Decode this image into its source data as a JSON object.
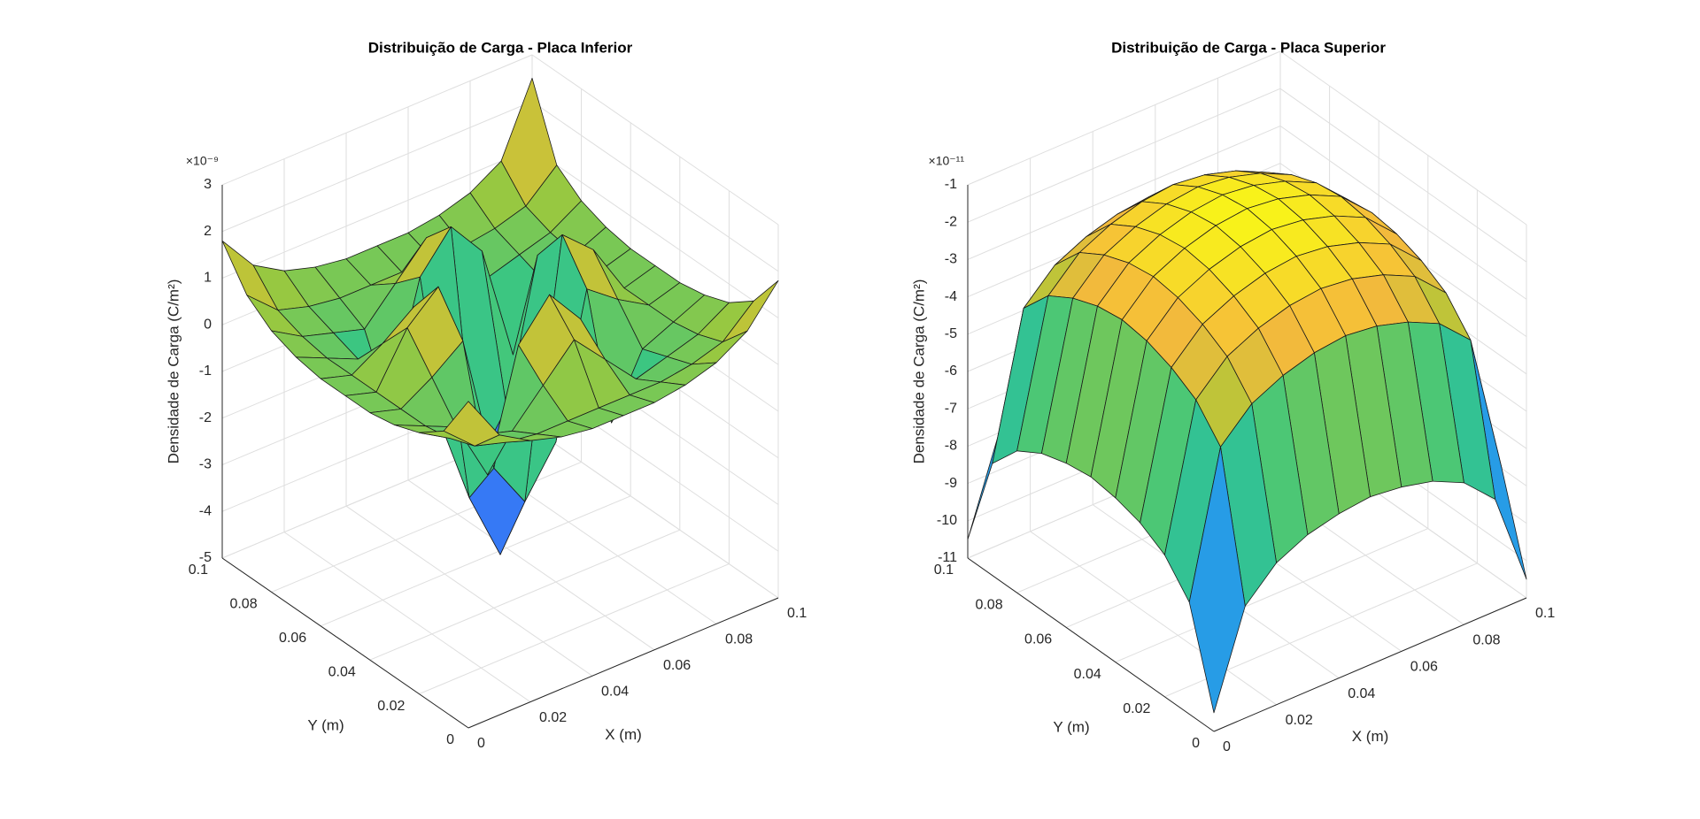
{
  "chart_data": [
    {
      "type": "surface",
      "title": "Distribuição de Carga - Placa Inferior",
      "xlabel": "X (m)",
      "ylabel": "Y (m)",
      "zlabel": "Densidade de Carga (C/m²)",
      "zscale": "×10⁻⁹",
      "x": [
        0,
        0.01,
        0.02,
        0.03,
        0.04,
        0.05,
        0.06,
        0.07,
        0.08,
        0.09,
        0.1
      ],
      "y": [
        0,
        0.01,
        0.02,
        0.03,
        0.04,
        0.05,
        0.06,
        0.07,
        0.08,
        0.09,
        0.1
      ],
      "z": [
        [
          2.0,
          1.0,
          0.6,
          0.4,
          0.3,
          0.3,
          0.3,
          0.4,
          0.6,
          1.0,
          1.8
        ],
        [
          1.0,
          0.4,
          0.2,
          0.1,
          0.1,
          0.1,
          0.1,
          0.1,
          0.2,
          0.4,
          1.0
        ],
        [
          0.6,
          0.2,
          0.0,
          -0.2,
          0.5,
          1.2,
          0.5,
          -0.2,
          0.0,
          0.2,
          0.6
        ],
        [
          0.4,
          0.1,
          -0.2,
          -1.5,
          1.0,
          1.8,
          1.0,
          -1.5,
          -0.2,
          0.1,
          0.4
        ],
        [
          0.3,
          0.1,
          0.5,
          1.0,
          -2.0,
          -3.0,
          -2.0,
          1.0,
          0.5,
          0.1,
          0.3
        ],
        [
          0.3,
          0.1,
          1.2,
          1.8,
          -3.0,
          -4.5,
          -3.0,
          1.8,
          1.2,
          0.1,
          0.3
        ],
        [
          0.3,
          0.1,
          0.5,
          1.0,
          -2.0,
          -3.0,
          -2.0,
          1.0,
          0.5,
          0.1,
          0.3
        ],
        [
          0.4,
          0.1,
          -0.2,
          -1.5,
          1.0,
          1.8,
          1.0,
          -1.5,
          -0.2,
          0.1,
          0.4
        ],
        [
          0.6,
          0.2,
          0.0,
          -0.2,
          0.5,
          1.2,
          0.5,
          -0.2,
          0.0,
          0.2,
          0.6
        ],
        [
          1.0,
          0.4,
          0.2,
          0.1,
          0.1,
          0.1,
          0.1,
          0.1,
          0.2,
          0.4,
          1.0
        ],
        [
          1.8,
          1.0,
          0.6,
          0.4,
          0.3,
          0.3,
          0.3,
          0.4,
          0.6,
          1.0,
          2.5
        ]
      ],
      "xlim": [
        0,
        0.1
      ],
      "ylim": [
        0,
        0.1
      ],
      "zlim": [
        -5,
        3
      ],
      "xticks": [
        0,
        0.02,
        0.04,
        0.06,
        0.08,
        0.1
      ],
      "yticks": [
        0,
        0.02,
        0.04,
        0.06,
        0.08,
        0.1
      ],
      "zticks": [
        -5,
        -4,
        -3,
        -2,
        -1,
        0,
        1,
        2,
        3
      ],
      "grid": true,
      "colormap": [
        "#3e26a8",
        "#4353f5",
        "#2f8ff5",
        "#17b7c6",
        "#3ec77e",
        "#a6c837",
        "#f5ba3c",
        "#f9fb15"
      ]
    },
    {
      "type": "surface",
      "title": "Distribuição de Carga - Placa Superior",
      "xlabel": "X (m)",
      "ylabel": "Y (m)",
      "zlabel": "Densidade de Carga (C/m²)",
      "zscale": "×10⁻¹¹",
      "x": [
        0,
        0.01,
        0.02,
        0.03,
        0.04,
        0.05,
        0.06,
        0.07,
        0.08,
        0.09,
        0.1
      ],
      "y": [
        0,
        0.01,
        0.02,
        0.03,
        0.04,
        0.05,
        0.06,
        0.07,
        0.08,
        0.09,
        0.1
      ],
      "z": [
        [
          -10.5,
          -8,
          -7.2,
          -6.8,
          -6.6,
          -6.5,
          -6.6,
          -6.8,
          -7.2,
          -8,
          -10.5
        ],
        [
          -8,
          -4.2,
          -3.4,
          -3.0,
          -2.75,
          -2.65,
          -2.75,
          -3.0,
          -3.4,
          -4.2,
          -8
        ],
        [
          -7.2,
          -3.4,
          -2.6,
          -2.2,
          -1.95,
          -1.85,
          -1.95,
          -2.2,
          -2.6,
          -3.4,
          -7.2
        ],
        [
          -6.8,
          -3.0,
          -2.2,
          -1.8,
          -1.55,
          -1.45,
          -1.55,
          -1.8,
          -2.2,
          -3.0,
          -6.8
        ],
        [
          -6.6,
          -2.75,
          -1.95,
          -1.55,
          -1.3,
          -1.2,
          -1.3,
          -1.55,
          -1.95,
          -2.75,
          -6.6
        ],
        [
          -6.5,
          -2.65,
          -1.85,
          -1.45,
          -1.2,
          -1.1,
          -1.2,
          -1.45,
          -1.85,
          -2.65,
          -6.5
        ],
        [
          -6.6,
          -2.75,
          -1.95,
          -1.55,
          -1.3,
          -1.2,
          -1.3,
          -1.55,
          -1.95,
          -2.75,
          -6.6
        ],
        [
          -6.8,
          -3.0,
          -2.2,
          -1.8,
          -1.55,
          -1.45,
          -1.55,
          -1.8,
          -2.2,
          -3.0,
          -6.8
        ],
        [
          -7.2,
          -3.4,
          -2.6,
          -2.2,
          -1.95,
          -1.85,
          -1.95,
          -2.2,
          -2.6,
          -3.4,
          -7.2
        ],
        [
          -8,
          -4.2,
          -3.4,
          -3.0,
          -2.75,
          -2.65,
          -2.75,
          -3.0,
          -3.4,
          -4.2,
          -8
        ],
        [
          -10.5,
          -8,
          -7.2,
          -6.8,
          -6.6,
          -6.5,
          -6.6,
          -6.8,
          -7.2,
          -8,
          -10.5
        ]
      ],
      "xlim": [
        0,
        0.1
      ],
      "ylim": [
        0,
        0.1
      ],
      "zlim": [
        -11,
        -1
      ],
      "xticks": [
        0,
        0.02,
        0.04,
        0.06,
        0.08,
        0.1
      ],
      "yticks": [
        0,
        0.02,
        0.04,
        0.06,
        0.08,
        0.1
      ],
      "zticks": [
        -11,
        -10,
        -9,
        -8,
        -7,
        -6,
        -5,
        -4,
        -3,
        -2,
        -1
      ],
      "grid": true,
      "colormap": [
        "#3e26a8",
        "#4353f5",
        "#2f8ff5",
        "#17b7c6",
        "#3ec77e",
        "#a6c837",
        "#f5ba3c",
        "#f9fb15"
      ]
    }
  ]
}
